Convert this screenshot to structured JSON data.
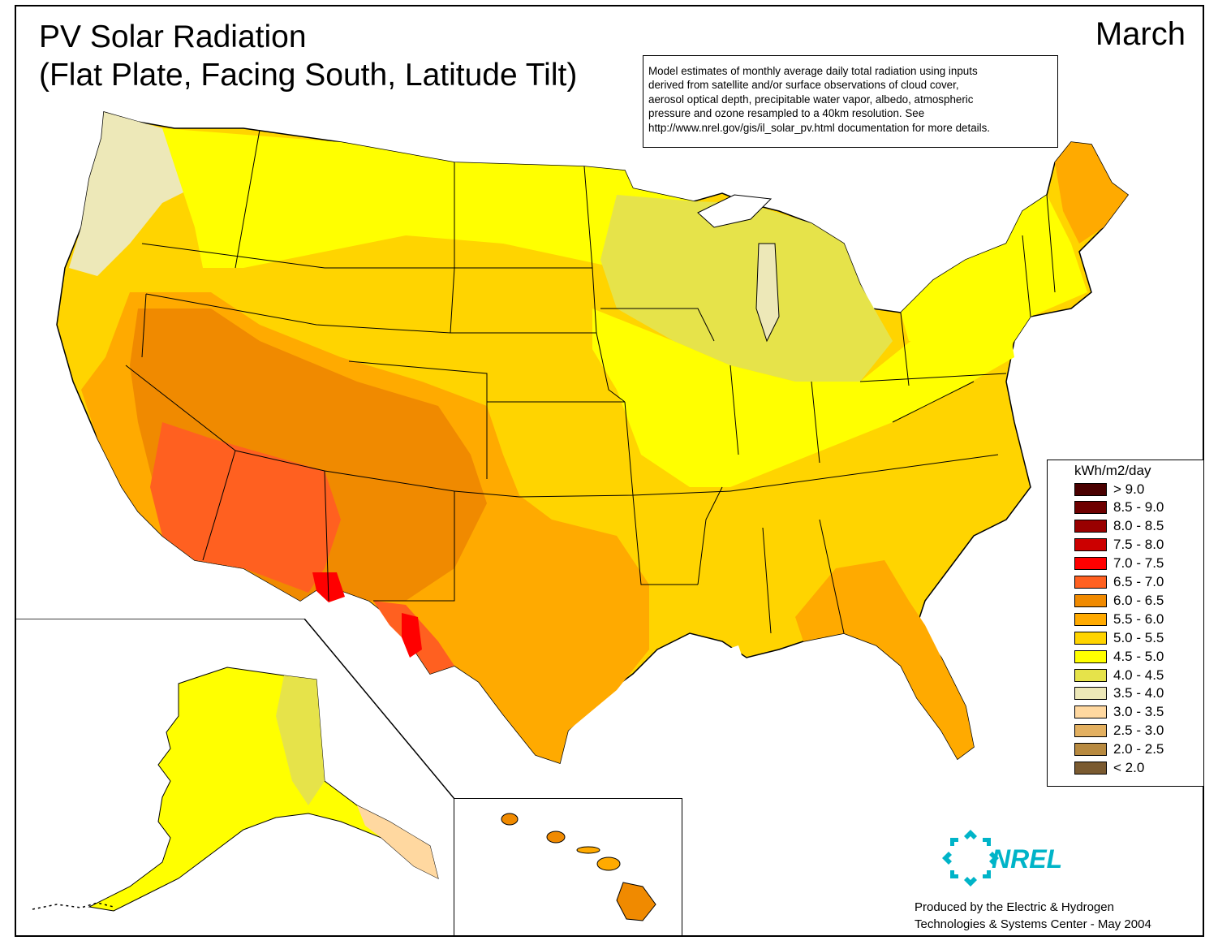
{
  "title": {
    "line1": "PV Solar Radiation",
    "line2": "(Flat Plate, Facing South, Latitude Tilt)"
  },
  "month": "March",
  "note": {
    "lines": [
      "Model estimates of monthly average daily total radiation using inputs",
      "derived from satellite and/or surface observations of cloud cover,",
      "aerosol optical depth, precipitable water vapor, albedo, atmospheric",
      "pressure and ozone resampled to a 40km resolution.  See",
      "http://www.nrel.gov/gis/il_solar_pv.html documentation for more details."
    ]
  },
  "legend": {
    "title": "kWh/m2/day",
    "items": [
      {
        "label": "> 9.0",
        "color": "#4a0000"
      },
      {
        "label": "8.5 - 9.0",
        "color": "#6e0000"
      },
      {
        "label": "8.0 - 8.5",
        "color": "#990000"
      },
      {
        "label": "7.5 - 8.0",
        "color": "#cc0000"
      },
      {
        "label": "7.0 - 7.5",
        "color": "#ff0000"
      },
      {
        "label": "6.5 - 7.0",
        "color": "#ff6020"
      },
      {
        "label": "6.0 - 6.5",
        "color": "#f08a00"
      },
      {
        "label": "5.5 - 6.0",
        "color": "#ffaa00"
      },
      {
        "label": "5.0 - 5.5",
        "color": "#ffd400"
      },
      {
        "label": "4.5 - 5.0",
        "color": "#ffff00"
      },
      {
        "label": "4.0 - 4.5",
        "color": "#e6e34a"
      },
      {
        "label": "3.5 - 4.0",
        "color": "#ede8b8"
      },
      {
        "label": "3.0 - 3.5",
        "color": "#ffd8a0"
      },
      {
        "label": "2.5 - 3.0",
        "color": "#e3b060"
      },
      {
        "label": "2.0 - 2.5",
        "color": "#b88a40"
      },
      {
        "label": "< 2.0",
        "color": "#7a5a30"
      }
    ]
  },
  "logo": {
    "text": "NREL",
    "color": "#00b4c8"
  },
  "credit": {
    "line1": "Produced by the Electric & Hydrogen",
    "line2": "Technologies & Systems Center - May 2004"
  }
}
